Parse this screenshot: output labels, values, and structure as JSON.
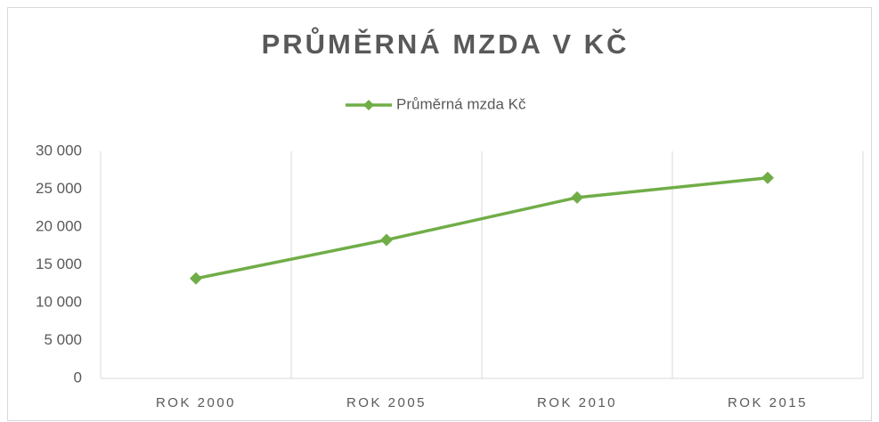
{
  "chart_data": {
    "type": "line",
    "title": "PRŮMĚRNÁ MZDA V KČ",
    "categories": [
      "ROK 2000",
      "ROK 2005",
      "ROK 2010",
      "ROK 2015"
    ],
    "series": [
      {
        "name": "Průměrná mzda Kč",
        "color": "#70ad47",
        "values": [
          13200,
          18300,
          23900,
          26500
        ]
      }
    ],
    "ylim": [
      0,
      30000
    ],
    "yticks": [
      0,
      {
        "value": 5000,
        "label": "5 000"
      },
      {
        "value": 10000,
        "label": "10 000"
      },
      {
        "value": 15000,
        "label": "15 000"
      },
      {
        "value": 20000,
        "label": "20 000"
      },
      {
        "value": 25000,
        "label": "25 000"
      },
      {
        "value": 30000,
        "label": "30 000"
      }
    ],
    "legend": "top"
  }
}
